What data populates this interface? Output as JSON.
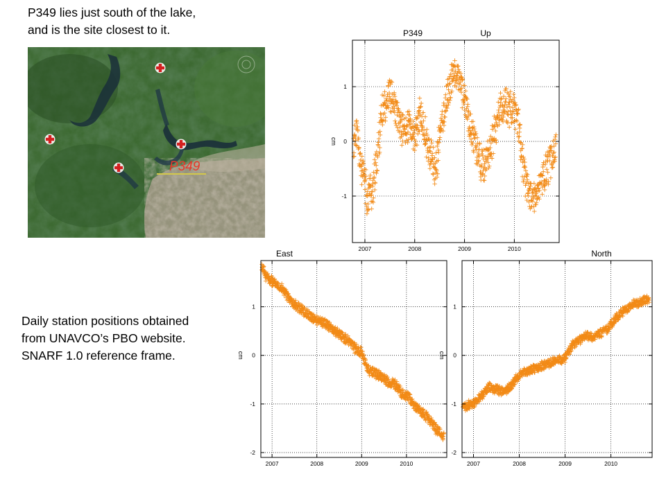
{
  "captions": {
    "top_line1": "P349  lies just south of the lake,",
    "top_line2": "and is the site closest to it.",
    "left_line1": "Daily station  positions obtained",
    "left_line2": "from UNAVCO’s PBO website.",
    "left_line3": "SNARF 1.0 reference frame."
  },
  "map": {
    "site_label": "P349",
    "label_color": "#e8382a",
    "underline_color": "#d4c84a",
    "markers": [
      "red-cross-marker",
      "red-cross-marker",
      "red-cross-marker",
      "red-cross-marker"
    ]
  },
  "colors": {
    "series": "#f28a16",
    "axis": "#000000",
    "grid": "#000000"
  },
  "chart_data": [
    {
      "type": "scatter",
      "title_station": "P349",
      "title": "Up",
      "ylabel": "cm",
      "xlabel": "",
      "xlim": [
        2006.75,
        2010.9
      ],
      "ylim": [
        -1.85,
        1.85
      ],
      "xticks": [
        "2007",
        "2008",
        "2009",
        "2010"
      ],
      "yticks": [
        "1",
        "0",
        "-1"
      ],
      "grid": true,
      "marker": "+",
      "x": [
        2006.78,
        2006.83,
        2006.88,
        2006.93,
        2007.0,
        2007.05,
        2007.1,
        2007.15,
        2007.2,
        2007.25,
        2007.3,
        2007.35,
        2007.4,
        2007.5,
        2007.6,
        2007.7,
        2007.8,
        2007.9,
        2008.0,
        2008.1,
        2008.2,
        2008.3,
        2008.4,
        2008.45,
        2008.5,
        2008.6,
        2008.7,
        2008.8,
        2008.9,
        2009.0,
        2009.1,
        2009.2,
        2009.3,
        2009.4,
        2009.5,
        2009.6,
        2009.7,
        2009.8,
        2009.9,
        2010.0,
        2010.1,
        2010.15,
        2010.2,
        2010.3,
        2010.4,
        2010.5,
        2010.6,
        2010.7,
        2010.8
      ],
      "y": [
        -0.1,
        0.3,
        -0.2,
        -0.5,
        -0.7,
        -1.1,
        -0.8,
        -1.0,
        -0.6,
        -0.3,
        0.2,
        0.5,
        0.7,
        0.9,
        0.6,
        0.3,
        0.2,
        0.3,
        0.0,
        0.5,
        0.2,
        -0.2,
        -0.5,
        -0.4,
        0.1,
        0.6,
        1.0,
        1.3,
        1.1,
        0.8,
        0.3,
        0.0,
        -0.3,
        -0.5,
        -0.2,
        0.2,
        0.5,
        0.7,
        0.6,
        0.6,
        0.2,
        -0.3,
        -0.6,
        -0.9,
        -1.1,
        -0.9,
        -0.6,
        -0.4,
        -0.2
      ]
    },
    {
      "type": "scatter",
      "title": "East",
      "ylabel": "cm",
      "xlabel": "",
      "xlim": [
        2006.75,
        2010.9
      ],
      "ylim": [
        -2.1,
        1.95
      ],
      "xticks": [
        "2007",
        "2008",
        "2009",
        "2010"
      ],
      "yticks": [
        "1",
        "0",
        "-1",
        "-2"
      ],
      "grid": true,
      "marker": "+",
      "x": [
        2006.78,
        2006.85,
        2006.95,
        2007.05,
        2007.15,
        2007.25,
        2007.35,
        2007.5,
        2007.65,
        2007.8,
        2007.95,
        2008.1,
        2008.25,
        2008.4,
        2008.55,
        2008.7,
        2008.85,
        2009.0,
        2009.15,
        2009.3,
        2009.45,
        2009.6,
        2009.75,
        2009.9,
        2010.05,
        2010.2,
        2010.35,
        2010.5,
        2010.65,
        2010.8
      ],
      "y": [
        1.8,
        1.65,
        1.55,
        1.5,
        1.45,
        1.35,
        1.2,
        1.05,
        0.95,
        0.85,
        0.75,
        0.7,
        0.6,
        0.5,
        0.4,
        0.3,
        0.15,
        0.05,
        -0.3,
        -0.35,
        -0.45,
        -0.55,
        -0.6,
        -0.8,
        -0.85,
        -1.05,
        -1.2,
        -1.3,
        -1.5,
        -1.65
      ]
    },
    {
      "type": "scatter",
      "title": "North",
      "ylabel": "cm",
      "xlabel": "",
      "xlim": [
        2006.75,
        2010.9
      ],
      "ylim": [
        -2.1,
        1.95
      ],
      "xticks": [
        "2007",
        "2008",
        "2009",
        "2010"
      ],
      "yticks": [
        "1",
        "0",
        "-1",
        "-2"
      ],
      "grid": true,
      "marker": "+",
      "x": [
        2006.78,
        2006.85,
        2006.95,
        2007.05,
        2007.15,
        2007.25,
        2007.35,
        2007.5,
        2007.65,
        2007.8,
        2007.95,
        2008.1,
        2008.25,
        2008.4,
        2008.55,
        2008.7,
        2008.85,
        2009.0,
        2009.15,
        2009.3,
        2009.45,
        2009.6,
        2009.75,
        2009.9,
        2010.05,
        2010.2,
        2010.35,
        2010.5,
        2010.65,
        2010.8
      ],
      "y": [
        -1.1,
        -1.05,
        -1.0,
        -0.95,
        -0.85,
        -0.75,
        -0.65,
        -0.7,
        -0.75,
        -0.65,
        -0.45,
        -0.35,
        -0.3,
        -0.25,
        -0.2,
        -0.15,
        -0.1,
        -0.05,
        0.2,
        0.3,
        0.4,
        0.35,
        0.45,
        0.5,
        0.7,
        0.85,
        0.95,
        1.05,
        1.1,
        1.15
      ]
    }
  ]
}
